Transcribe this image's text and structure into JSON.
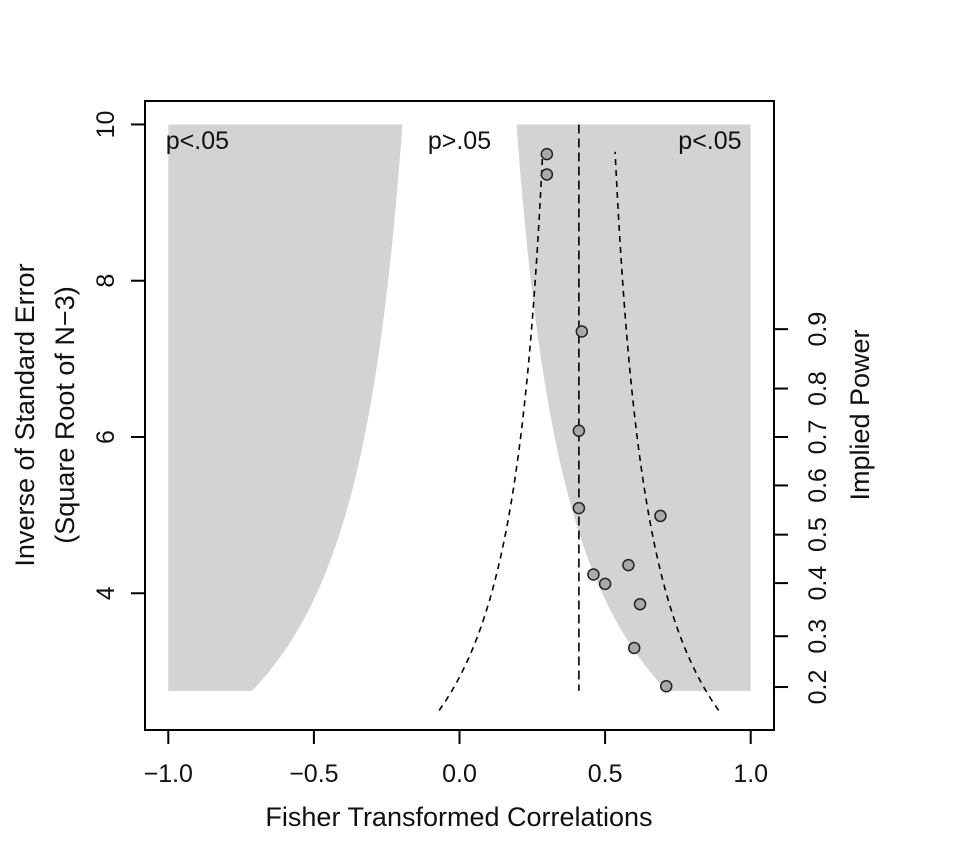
{
  "chart_data": {
    "type": "scatter",
    "xlabel": "Fisher Transformed Correlations",
    "ylabel_lines": [
      "Inverse of Standard Error",
      "(Square Root of N−3)"
    ],
    "y2label": "Implied Power",
    "xlim": [
      -1.08,
      1.08
    ],
    "ylim": [
      2.25,
      10.3
    ],
    "x_ticks": [
      -1.0,
      -0.5,
      0.0,
      0.5,
      1.0
    ],
    "x_tick_labels": [
      "−1.0",
      "−0.5",
      "0.0",
      "0.5",
      "1.0"
    ],
    "y_ticks": [
      4,
      6,
      8,
      10
    ],
    "y_tick_labels": [
      "4",
      "6",
      "8",
      "10"
    ],
    "y2_ticks": [
      {
        "label": "0.2",
        "y": 2.8
      },
      {
        "label": "0.3",
        "y": 3.45
      },
      {
        "label": "0.4",
        "y": 4.13
      },
      {
        "label": "0.5",
        "y": 4.75
      },
      {
        "label": "0.6",
        "y": 5.38
      },
      {
        "label": "0.7",
        "y": 6.0
      },
      {
        "label": "0.8",
        "y": 6.62
      },
      {
        "label": "0.9",
        "y": 7.38
      }
    ],
    "region_labels": [
      {
        "text": "p<.05",
        "x": -0.9,
        "y": 9.8
      },
      {
        "text": "p>.05",
        "x": 0.0,
        "y": 9.8
      },
      {
        "text": "p<.05",
        "x": 0.86,
        "y": 9.8
      }
    ],
    "significance_boundary": {
      "x_at_ymax": 0.2,
      "z": 1.96,
      "y_range": [
        2.75,
        10.0
      ]
    },
    "power_curve": {
      "k": 1.2,
      "y_range": [
        2.5,
        9.65
      ]
    },
    "summary_estimate_x": 0.41,
    "points": [
      {
        "x": 0.3,
        "y": 9.62
      },
      {
        "x": 0.3,
        "y": 9.36
      },
      {
        "x": 0.42,
        "y": 7.35
      },
      {
        "x": 0.41,
        "y": 6.08
      },
      {
        "x": 0.41,
        "y": 5.09
      },
      {
        "x": 0.69,
        "y": 4.99
      },
      {
        "x": 0.58,
        "y": 4.36
      },
      {
        "x": 0.46,
        "y": 4.24
      },
      {
        "x": 0.5,
        "y": 4.12
      },
      {
        "x": 0.62,
        "y": 3.86
      },
      {
        "x": 0.6,
        "y": 3.3
      },
      {
        "x": 0.71,
        "y": 2.81
      }
    ],
    "colors": {
      "region_fill": "#d3d3d3",
      "point_fill": "#a9a9a9",
      "point_stroke": "#222222",
      "line": "#000000"
    }
  }
}
